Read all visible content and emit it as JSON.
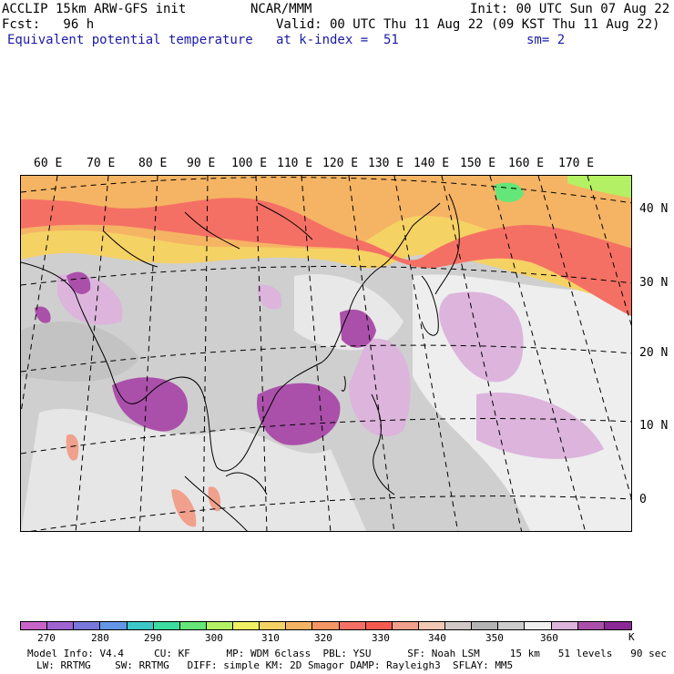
{
  "header": {
    "line1_left": "ACCLIP 15km ARW-GFS init",
    "line1_center": "NCAR/MMM",
    "line1_right": "Init: 00 UTC Sun 07 Aug 22",
    "line2_left": "Fcst:   96 h",
    "line2_right": "Valid: 00 UTC Thu 11 Aug 22 (09 KST Thu 11 Aug 22)",
    "line3_left": "Equivalent potential temperature",
    "line3_center": "at k-index =  51",
    "line3_right": "sm= 2"
  },
  "map": {
    "lon_labels": [
      "60 E",
      "70 E",
      "80 E",
      "90 E",
      "100 E",
      "110 E",
      "120 E",
      "130 E",
      "140 E",
      "150 E",
      "160 E",
      "170 E"
    ],
    "lat_labels": [
      "40 N",
      "30 N",
      "20 N",
      "10 N",
      "0"
    ]
  },
  "colorbar": {
    "unit": "K",
    "ticks": [
      "270",
      "280",
      "290",
      "300",
      "310",
      "320",
      "330",
      "340",
      "350",
      "360"
    ],
    "colors": [
      "#c864c8",
      "#a064d2",
      "#7878dc",
      "#6496e6",
      "#3cc8c8",
      "#3cdca0",
      "#64e678",
      "#b4f064",
      "#f0f064",
      "#f5d264",
      "#f5b464",
      "#f59664",
      "#f57064",
      "#f55a50",
      "#f0a08c",
      "#f0c8b4",
      "#d2c8c8",
      "#b4b4b4",
      "#cccccc",
      "#f0f0f0",
      "#dcb4dc",
      "#aa50aa",
      "#8c2896"
    ]
  },
  "footer": {
    "line1": "Model Info: V4.4     CU: KF      MP: WDM 6class  PBL: YSU      SF: Noah LSM     15 km   51 levels   90 sec",
    "line2": "LW: RRTMG    SW: RRTMG   DIFF: simple KM: 2D Smagor DAMP: Rayleigh3  SFLAY: MM5"
  }
}
